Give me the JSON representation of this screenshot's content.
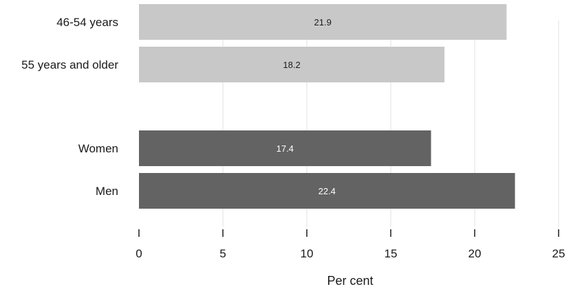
{
  "chart_data": {
    "type": "bar",
    "orientation": "horizontal",
    "categories": [
      "46-54 years",
      "55 years and older",
      "Women",
      "Men"
    ],
    "values": [
      21.9,
      18.2,
      17.4,
      22.4
    ],
    "data_labels": [
      "21.9",
      "18.2",
      "17.4",
      "22.4"
    ],
    "groups": [
      {
        "categories": [
          "46-54 years",
          "55 years and older"
        ],
        "color": "#c8c8c8",
        "label_color": "#1a1a1a"
      },
      {
        "categories": [
          "Women",
          "Men"
        ],
        "color": "#636363",
        "label_color": "#ffffff"
      }
    ],
    "title": "",
    "xlabel": "Per cent",
    "ylabel": "",
    "xlim": [
      0,
      25
    ],
    "xticks": [
      0,
      5,
      10,
      15,
      20,
      25
    ],
    "xtick_labels": [
      "0",
      "5",
      "10",
      "15",
      "20",
      "25"
    ],
    "grid": "vertical gridlines",
    "legend": "none"
  }
}
